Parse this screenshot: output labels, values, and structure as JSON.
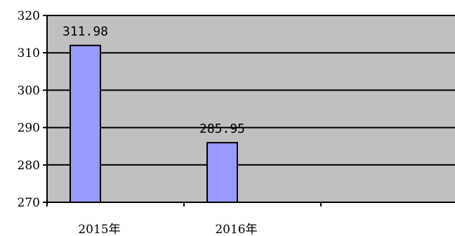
{
  "chart_data": {
    "type": "bar",
    "categories": [
      "2015年",
      "2016年",
      ""
    ],
    "values": [
      311.98,
      285.95,
      null
    ],
    "data_labels": [
      "311.98",
      "285.95",
      ""
    ],
    "yticks": [
      "270",
      "280",
      "290",
      "300",
      "310",
      "320"
    ],
    "ylim": [
      270,
      320
    ],
    "grid": true,
    "legend": "none",
    "title": "",
    "xlabel": "",
    "ylabel": "",
    "colors": {
      "plot_background": "#c0c0c0",
      "bar_fill": "#9999ff",
      "bar_stroke": "#000000",
      "gridline": "#000000"
    }
  }
}
